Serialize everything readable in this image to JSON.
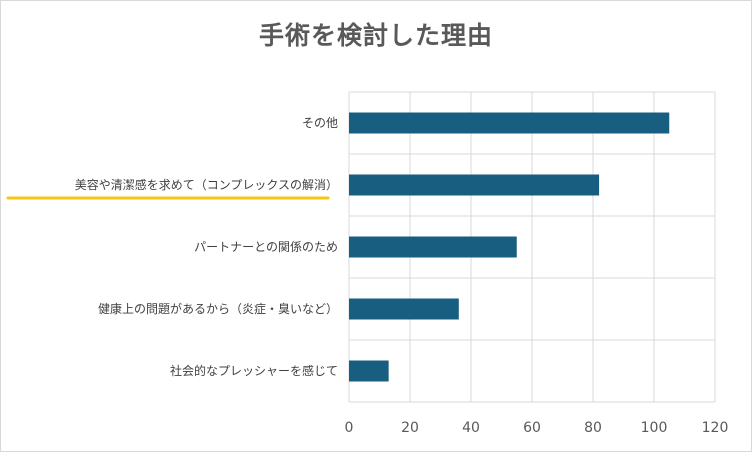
{
  "chart_data": {
    "type": "bar",
    "orientation": "horizontal",
    "title": "手術を検討した理由",
    "categories": [
      "その他",
      "美容や清潔感を求めて（コンプレックスの解消）",
      "パートナーとの関係のため",
      "健康上の問題があるから（炎症・臭いなど）",
      "社会的なプレッシャーを感じて"
    ],
    "values": [
      105,
      82,
      55,
      36,
      13
    ],
    "xlim": [
      0,
      120
    ],
    "xticks": [
      "0",
      "20",
      "40",
      "60",
      "80",
      "100",
      "120"
    ],
    "grid": true,
    "bar_color": "#185e80",
    "highlight": {
      "category": "美容や清潔感を求めて（コンプレックスの解消）",
      "underline_color": "#f5c518"
    }
  }
}
